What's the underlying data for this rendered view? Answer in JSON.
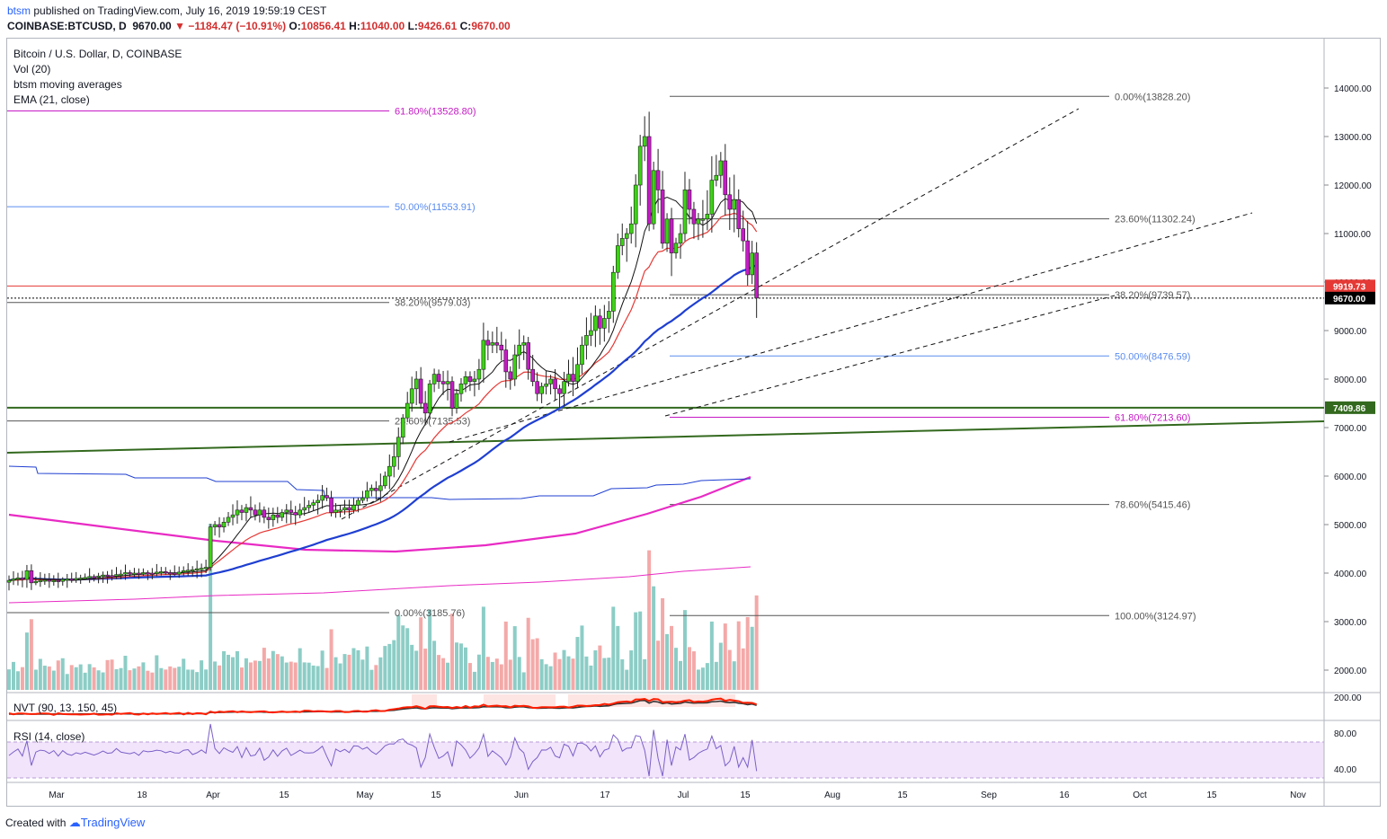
{
  "header": {
    "user": "btsm",
    "published": "published on TradingView.com, July 16, 2019 19:59:19 CEST",
    "symbol": "COINBASE:BTCUSD, D",
    "price": "9670.00",
    "arrow": "▼",
    "change": "−1184.47 (−10.91%)",
    "o_label": "O:",
    "o": "10856.41",
    "h_label": "H:",
    "h": "11040.00",
    "l_label": "L:",
    "l": "9426.61",
    "c_label": "C:",
    "c": "9670.00"
  },
  "legend": {
    "title": "Bitcoin / U.S. Dollar, D, COINBASE",
    "vol": "Vol (20)",
    "ma": "btsm moving averages",
    "ema": "EMA (21, close)",
    "nvt": "NVT (90, 13, 150, 45)",
    "rsi": "RSI (14, close)"
  },
  "footer": {
    "created": "Created with",
    "brand": "TradingView"
  },
  "colors": {
    "up": "#3cd414",
    "down": "#c61ac6",
    "vol_up": "#7fc8c0",
    "vol_down": "#f2a09f",
    "ma_blue": "#1f3fd1",
    "ma_magenta": "#e82bc4",
    "ema": "#e53935",
    "ma_black": "#111111",
    "fib_purple": "#c61ac6",
    "fib_blue": "#5b8def",
    "fib_gray": "#555555",
    "support_green": "#33691e",
    "rsi_line": "#7b5fc7",
    "rsi_bg": "#f1e4fb",
    "nvt_red": "#ff1e00"
  },
  "chart_data": {
    "type": "candlestick",
    "ylim": [
      1400,
      15000
    ],
    "y_axis_ticks": [
      "14000.00",
      "13000.00",
      "12000.00",
      "11000.00",
      "10000.00",
      "9000.00",
      "8000.00",
      "7000.00",
      "6000.00",
      "5000.00",
      "4000.00",
      "3000.00",
      "2000.00"
    ],
    "x_axis_ticks": [
      "Mar",
      "18",
      "Apr",
      "15",
      "May",
      "15",
      "Jun",
      "17",
      "Jul",
      "15",
      "Aug",
      "15",
      "Sep",
      "16",
      "Oct",
      "15",
      "Nov"
    ],
    "price_markers": [
      {
        "label": "9919.73",
        "value": 9919.73,
        "color": "#e53935"
      },
      {
        "label": "9670.00",
        "value": 9670.0,
        "color": "#000000"
      },
      {
        "label": "7409.86",
        "value": 7409.86,
        "color": "#33691e"
      }
    ],
    "fib_left": [
      {
        "label": "61.80%(13528.80)",
        "value": 13528.8,
        "color": "#c61ac6"
      },
      {
        "label": "50.00%(11553.91)",
        "value": 11553.91,
        "color": "#5b8def"
      },
      {
        "label": "38.20%(9579.03)",
        "value": 9579.03,
        "color": "#555555"
      },
      {
        "label": "23.60%(7135.53)",
        "value": 7135.53,
        "color": "#555555"
      },
      {
        "label": "0.00%(3185.76)",
        "value": 3185.76,
        "color": "#555555"
      }
    ],
    "fib_right": [
      {
        "label": "0.00%(13828.20)",
        "value": 13828.2,
        "color": "#555555"
      },
      {
        "label": "23.60%(11302.24)",
        "value": 11302.24,
        "color": "#555555"
      },
      {
        "label": "38.20%(9739.57)",
        "value": 9739.57,
        "color": "#555555"
      },
      {
        "label": "50.00%(8476.59)",
        "value": 8476.59,
        "color": "#5b8def"
      },
      {
        "label": "61.80%(7213.60)",
        "value": 7213.6,
        "color": "#c61ac6"
      },
      {
        "label": "78.60%(5415.46)",
        "value": 5415.46,
        "color": "#555555"
      },
      {
        "label": "100.00%(3124.97)",
        "value": 3124.97,
        "color": "#555555"
      }
    ],
    "closes": [
      3850,
      3880,
      3900,
      3870,
      4050,
      3800,
      3830,
      3850,
      3860,
      3840,
      3850,
      3830,
      3870,
      3880,
      3860,
      3890,
      3900,
      3910,
      3930,
      3920,
      3940,
      3960,
      3950,
      3940,
      3970,
      3980,
      4010,
      3990,
      4000,
      3990,
      4010,
      4000,
      3990,
      4020,
      4030,
      4010,
      4000,
      3980,
      4020,
      4050,
      4060,
      4070,
      4090,
      4100,
      4120,
      4950,
      5000,
      4950,
      5050,
      5150,
      5200,
      5300,
      5250,
      5350,
      5300,
      5200,
      5300,
      5150,
      5100,
      5200,
      5150,
      5250,
      5300,
      5250,
      5200,
      5300,
      5350,
      5400,
      5450,
      5500,
      5600,
      5550,
      5250,
      5300,
      5300,
      5350,
      5300,
      5400,
      5500,
      5550,
      5700,
      5750,
      5700,
      5800,
      6000,
      6200,
      6400,
      6800,
      7200,
      7500,
      7800,
      8000,
      7500,
      7300,
      7900,
      8100,
      7950,
      7900,
      7950,
      7400,
      7700,
      7900,
      8050,
      7950,
      8000,
      8200,
      8800,
      8700,
      8750,
      8700,
      8600,
      8150,
      8000,
      8500,
      8700,
      8750,
      8200,
      7950,
      7700,
      7850,
      7900,
      8000,
      7800,
      7700,
      7950,
      8100,
      7950,
      8300,
      8700,
      8900,
      9000,
      9300,
      9050,
      9250,
      9400,
      10200,
      10750,
      10900,
      11000,
      11200,
      12000,
      12800,
      13000,
      11200,
      12300,
      11900,
      10800,
      11300,
      10600,
      10800,
      11000,
      11900,
      11500,
      11200,
      11300,
      11300,
      11400,
      12100,
      12200,
      12500,
      11800,
      11500,
      11700,
      11100,
      10850,
      10150,
      10600,
      9670
    ],
    "ranges": [
      {
        "from": "Mar",
        "to": "Jul 16",
        "kind": "daily candles (BTC/USD)"
      }
    ],
    "ma_blue_fast_end": 9860,
    "ma_magenta_end": 5940,
    "ma_blue_slow_end": 5900,
    "ma_magenta_slow_end": 4080,
    "rsi_levels": [
      "80.00",
      "40.00"
    ],
    "nvt_levels": [
      "200.00"
    ]
  }
}
